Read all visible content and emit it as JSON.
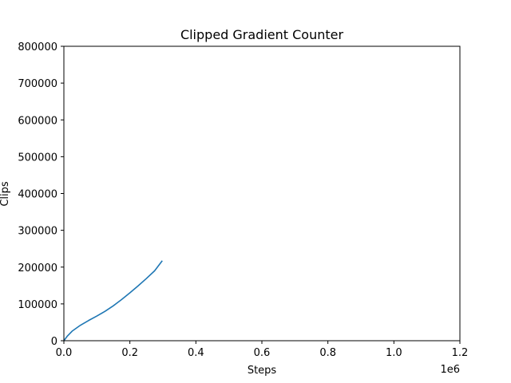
{
  "colors": {
    "line": "#1f77b4",
    "axes": "#000000",
    "background": "#ffffff"
  },
  "chart_data": {
    "type": "line",
    "title": "Clipped Gradient Counter",
    "xlabel": "Steps",
    "ylabel": "Clips",
    "x_offset_label": "1e6",
    "xlim": [
      0,
      1200000
    ],
    "ylim": [
      0,
      800000
    ],
    "x_ticks": [
      0,
      200000,
      400000,
      600000,
      800000,
      1000000,
      1200000
    ],
    "x_tick_labels": [
      "0.0",
      "0.2",
      "0.4",
      "0.6",
      "0.8",
      "1.0",
      "1.2"
    ],
    "y_ticks": [
      0,
      100000,
      200000,
      300000,
      400000,
      500000,
      600000,
      700000,
      800000
    ],
    "y_tick_labels": [
      "0",
      "100000",
      "200000",
      "300000",
      "400000",
      "500000",
      "600000",
      "700000",
      "800000"
    ],
    "grid": false,
    "legend": "none",
    "series": [
      {
        "x": [
          0,
          10000,
          25000,
          50000,
          75000,
          100000,
          125000,
          150000,
          175000,
          200000,
          225000,
          250000,
          275000,
          297000
        ],
        "y": [
          0,
          12000,
          26000,
          42000,
          55000,
          67000,
          80000,
          95000,
          112000,
          130000,
          149000,
          169000,
          190000,
          216000
        ]
      }
    ]
  }
}
